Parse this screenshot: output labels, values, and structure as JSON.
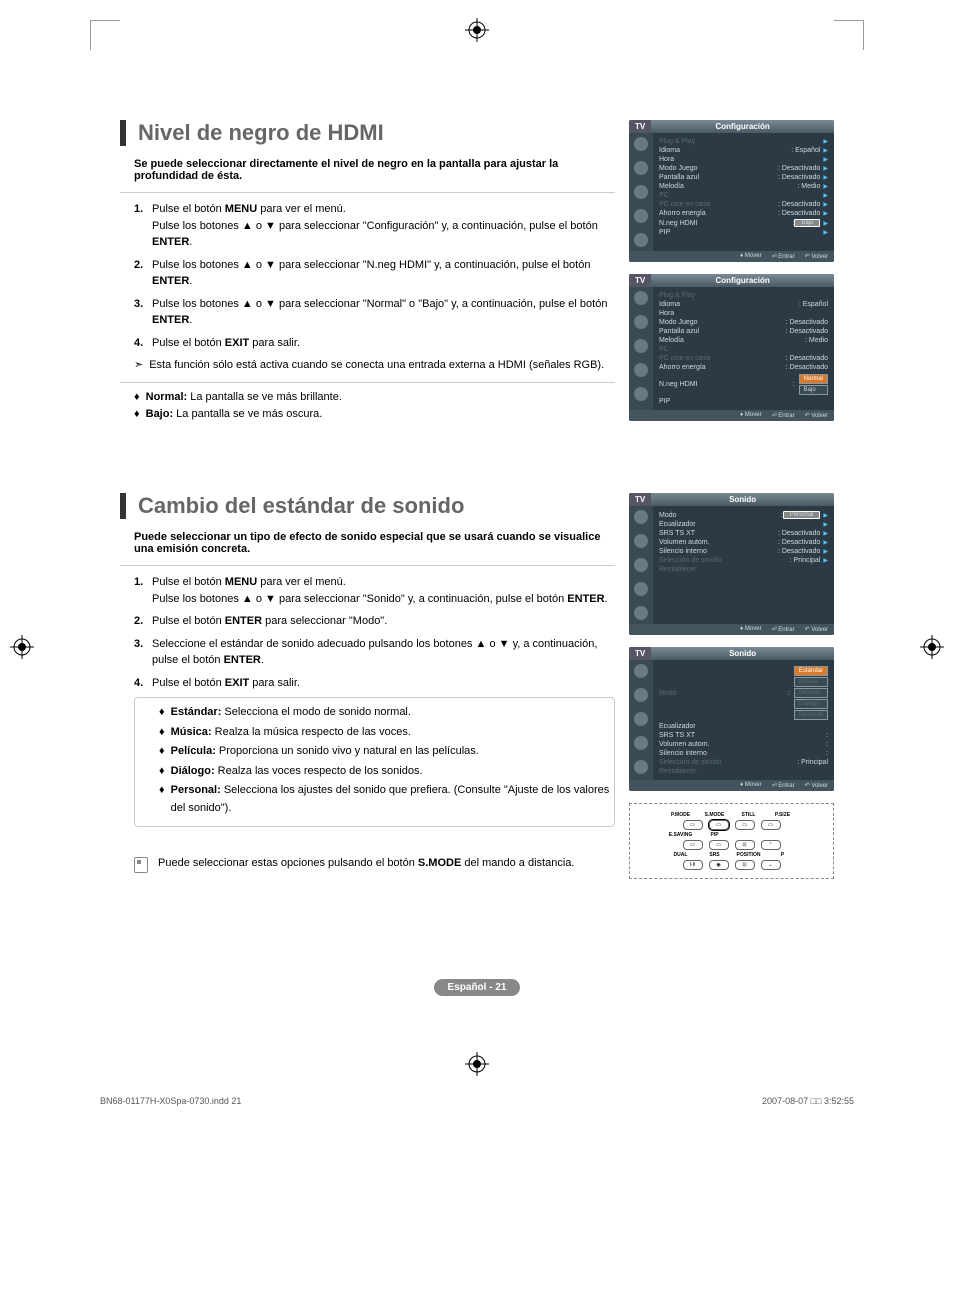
{
  "section1": {
    "title": "Nivel de negro de HDMI",
    "intro": "Se puede seleccionar directamente el nivel de negro en la pantalla para ajustar la profundidad de ésta.",
    "steps": [
      {
        "num": "1.",
        "html": "Pulse el botón <b>MENU</b> para ver el menú.<br>Pulse los botones ▲ o ▼ para seleccionar \"Configuración\" y, a continuación, pulse el botón <b>ENTER</b>."
      },
      {
        "num": "2.",
        "html": "Pulse los botones ▲ o ▼ para seleccionar \"N.neg HDMI\" y, a continuación, pulse el botón <b>ENTER</b>."
      },
      {
        "num": "3.",
        "html": "Pulse los botones ▲ o ▼ para seleccionar \"Normal\" o \"Bajo\" y, a continuación, pulse el botón <b>ENTER</b>."
      },
      {
        "num": "4.",
        "html": "Pulse el botón <b>EXIT</b> para salir."
      }
    ],
    "note": "Esta función sólo está activa cuando se conecta una entrada externa a HDMI (señales RGB).",
    "bullets": [
      {
        "html": "<b>Normal:</b> La pantalla se ve más brillante."
      },
      {
        "html": "<b>Bajo:</b> La pantalla se ve más oscura."
      }
    ]
  },
  "section2": {
    "title": "Cambio del estándar de sonido",
    "intro": "Puede seleccionar un tipo de efecto de sonido especial que se usará cuando se visualice una emisión concreta.",
    "steps": [
      {
        "num": "1.",
        "html": "Pulse el botón <b>MENU</b> para ver el menú.<br>Pulse los botones ▲ o ▼ para seleccionar \"Sonido\" y, a continuación, pulse el botón <b>ENTER</b>."
      },
      {
        "num": "2.",
        "html": "Pulse el botón <b>ENTER</b> para seleccionar \"Modo\"."
      },
      {
        "num": "3.",
        "html": "Seleccione el estándar de sonido adecuado pulsando los botones ▲ o ▼ y, a continuación, pulse el botón <b>ENTER</b>."
      },
      {
        "num": "4.",
        "html": "Pulse el botón <b>EXIT</b> para salir."
      }
    ],
    "innerBullets": [
      {
        "html": "<b>Estándar:</b> Selecciona el modo de sonido normal."
      },
      {
        "html": "<b>Música:</b> Realza la música respecto de las voces."
      },
      {
        "html": "<b>Película:</b> Proporciona un sonido vivo y natural en las películas."
      },
      {
        "html": "<b>Diálogo:</b> Realza las voces respecto de los sonidos."
      },
      {
        "html": "<b>Personal:</b> Selecciona los ajustes del sonido que prefiera. (Consulte \"Ajuste de los valores del sonido\")."
      }
    ],
    "remoteNote": "Puede seleccionar estas opciones pulsando el botón <b>S.MODE</b> del mando a distancia."
  },
  "menus": {
    "config1": {
      "tv": "TV",
      "title": "Configuración",
      "rows": [
        {
          "l": "Plug & Play",
          "v": "",
          "dim": true,
          "arrow": true
        },
        {
          "l": "Idioma",
          "v": ": Español",
          "arrow": true
        },
        {
          "l": "Hora",
          "v": "",
          "arrow": true
        },
        {
          "l": "Modo Juego",
          "v": ": Desactivado",
          "arrow": true
        },
        {
          "l": "Pantalla azul",
          "v": ": Desactivado",
          "arrow": true
        },
        {
          "l": "Melodía",
          "v": ": Medio",
          "arrow": true
        },
        {
          "l": "PC",
          "v": "",
          "dim": true,
          "arrow": true
        },
        {
          "l": "PC cine en casa",
          "v": ": Desactivado",
          "dim": true,
          "arrow": true
        },
        {
          "l": "Ahorro energía",
          "v": ": Desactivado",
          "arrow": true
        },
        {
          "l": "N.neg HDMI",
          "v": ": Bajo",
          "hl": true,
          "arrow": true
        },
        {
          "l": "PIP",
          "v": "",
          "arrow": true
        }
      ]
    },
    "config2": {
      "tv": "TV",
      "title": "Configuración",
      "rows": [
        {
          "l": "Plug & Play",
          "v": "",
          "dim": true
        },
        {
          "l": "Idioma",
          "v": ": Español"
        },
        {
          "l": "Hora",
          "v": ""
        },
        {
          "l": "Modo Juego",
          "v": ": Desactivado"
        },
        {
          "l": "Pantalla azul",
          "v": ": Desactivado"
        },
        {
          "l": "Melodía",
          "v": ": Medio"
        },
        {
          "l": "PC",
          "v": "",
          "dim": true
        },
        {
          "l": "PC cine en casa",
          "v": ": Desactivado",
          "dim": true
        },
        {
          "l": "Ahorro energía",
          "v": ": Desactivado"
        },
        {
          "l": "N.neg HDMI",
          "v": ":",
          "opts": [
            "Normal",
            "Bajo"
          ],
          "selIdx": 0
        },
        {
          "l": "PIP",
          "v": ""
        }
      ]
    },
    "sonido1": {
      "tv": "TV",
      "title": "Sonido",
      "rows": [
        {
          "l": "Modo",
          "v": ": Personal",
          "hl": true,
          "arrow": true
        },
        {
          "l": "Ecualizador",
          "v": "",
          "arrow": true
        },
        {
          "l": "SRS TS XT",
          "v": ": Desactivado",
          "arrow": true
        },
        {
          "l": "Volumen autom.",
          "v": ": Desactivado",
          "arrow": true
        },
        {
          "l": "Silencio interno",
          "v": ": Desactivado",
          "arrow": true
        },
        {
          "l": "Selección de sonido",
          "v": ": Principal",
          "dim": true,
          "arrow": true
        },
        {
          "l": "Restablecer",
          "v": "",
          "dim": true
        }
      ]
    },
    "sonido2": {
      "tv": "TV",
      "title": "Sonido",
      "rows": [
        {
          "l": "Modo",
          "v": ":",
          "dim": true,
          "opts": [
            "Estándar",
            "Música",
            "Película",
            "Diálogo",
            "Personal"
          ],
          "selIdx": 0
        },
        {
          "l": "Ecualizador",
          "v": ""
        },
        {
          "l": "SRS TS XT",
          "v": ":"
        },
        {
          "l": "Volumen autom.",
          "v": ":"
        },
        {
          "l": "Silencio interno",
          "v": ":"
        },
        {
          "l": "Selección de sonido",
          "v": ": Principal",
          "dim": true
        },
        {
          "l": "Restablecer",
          "v": "",
          "dim": true
        }
      ]
    },
    "footer": {
      "move": "Mover",
      "enter": "Entrar",
      "back": "Volver"
    }
  },
  "remote": {
    "row1": [
      "P.MODE",
      "S.MODE",
      "STILL",
      "P.SIZE"
    ],
    "row2": [
      "E.SAVING",
      "PIP",
      "",
      ""
    ],
    "row3": [
      "DUAL",
      "SRS",
      "POSITION",
      "P"
    ]
  },
  "footer": {
    "label": "Español - 21"
  },
  "meta": {
    "left": "BN68-01177H-X0Spa-0730.indd   21",
    "right": "2007-08-07   □□ 3:52:55"
  },
  "colors": {
    "panelBg": "#2b3a44",
    "panelHeader": "#556",
    "panelTitleGrad1": "#7a8a95",
    "arrowBlue": "#4fc3f7",
    "hlOrange": "#d97a2a"
  }
}
